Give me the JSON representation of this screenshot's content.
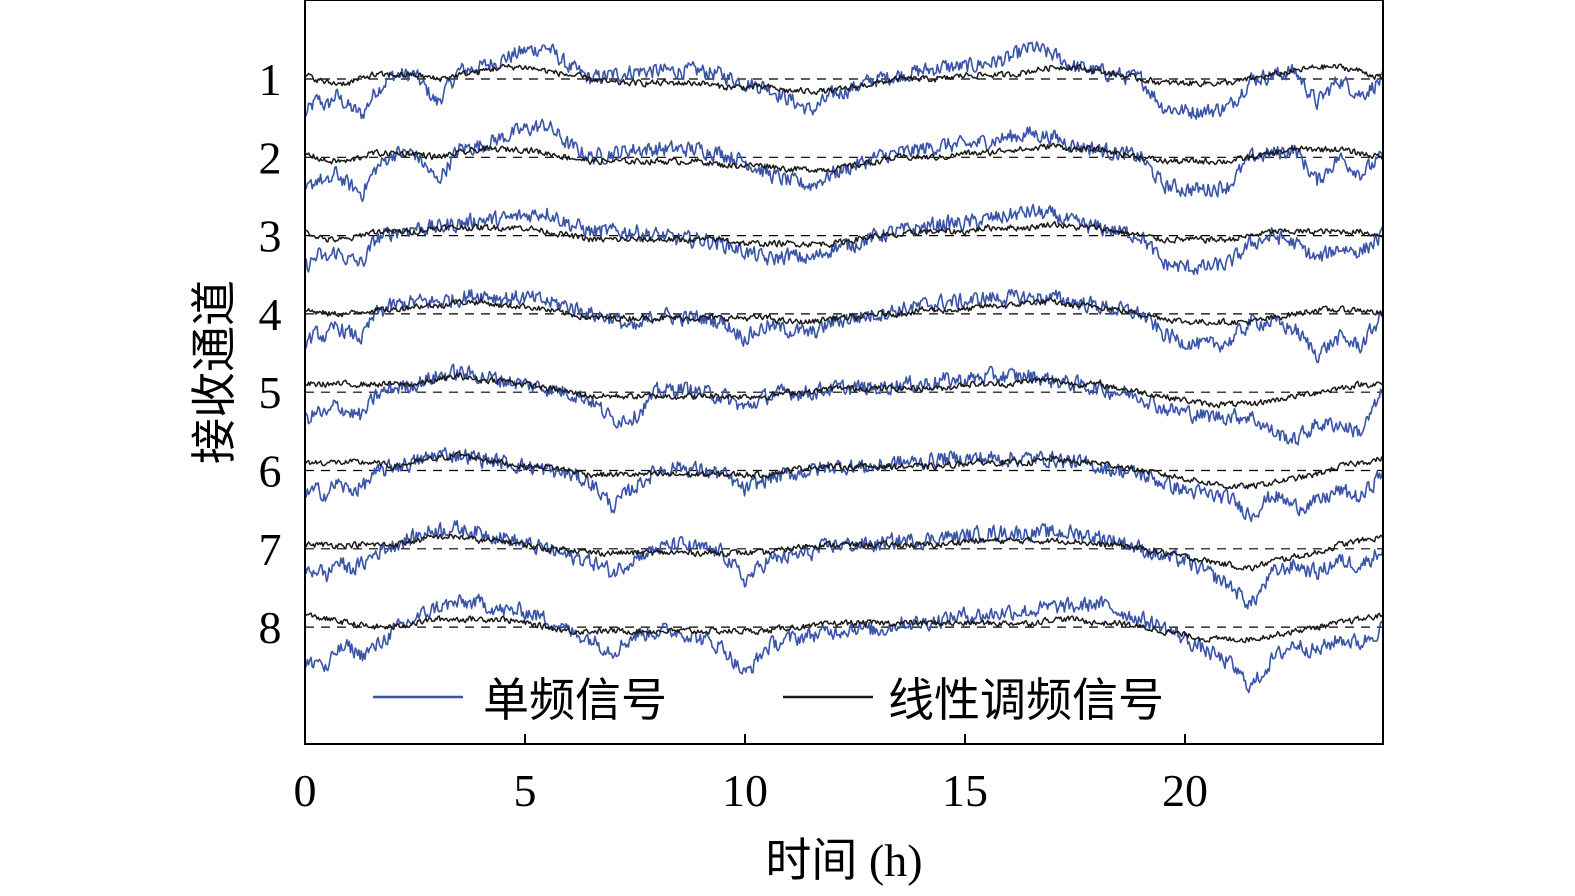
{
  "chart_data": {
    "type": "line",
    "xlabel": "时间 (h)",
    "ylabel": "接收通道",
    "xlim": [
      0,
      24.5
    ],
    "xticks": [
      0,
      5,
      10,
      15,
      20
    ],
    "channels": [
      "1",
      "2",
      "3",
      "4",
      "5",
      "6",
      "7",
      "8"
    ],
    "grid": false,
    "legend_position": "bottom-inside",
    "baseline_style": "dashed",
    "series": [
      {
        "name": "单频信号",
        "color": "#3a54a8",
        "profile_x": [
          0,
          0.3,
          0.5,
          0.7,
          1.0,
          1.3,
          1.6,
          2.0,
          2.5,
          3.0,
          3.5,
          4.0,
          4.5,
          5.0,
          5.5,
          6.0,
          6.5,
          7.0,
          7.5,
          8.0,
          8.5,
          9.0,
          9.5,
          10.0,
          10.5,
          11.0,
          11.5,
          12.0,
          12.5,
          13.0,
          13.5,
          14.0,
          14.5,
          15.0,
          15.5,
          16.0,
          16.5,
          17.0,
          17.5,
          18.0,
          18.5,
          19.0,
          19.5,
          20.0,
          20.5,
          21.0,
          21.5,
          22.0,
          22.5,
          23.0,
          23.5,
          24.0,
          24.5
        ],
        "channel_offsets": [
          [
            -0.45,
            -0.25,
            -0.35,
            -0.2,
            -0.35,
            -0.45,
            -0.15,
            0.05,
            0.05,
            -0.3,
            0.1,
            0.15,
            0.25,
            0.35,
            0.4,
            0.15,
            0.0,
            0.05,
            0.1,
            0.1,
            0.1,
            0.1,
            0.05,
            -0.05,
            -0.1,
            -0.25,
            -0.4,
            -0.2,
            -0.1,
            0.0,
            0.05,
            0.1,
            0.15,
            0.15,
            0.2,
            0.25,
            0.4,
            0.3,
            0.15,
            0.1,
            0.05,
            0.0,
            -0.35,
            -0.4,
            -0.4,
            -0.35,
            0.0,
            0.05,
            0.1,
            -0.3,
            0.0,
            -0.2,
            0.0
          ],
          [
            -0.45,
            -0.25,
            -0.35,
            -0.2,
            -0.35,
            -0.45,
            -0.15,
            0.05,
            0.05,
            -0.3,
            0.1,
            0.15,
            0.25,
            0.35,
            0.4,
            0.15,
            0.0,
            0.05,
            0.1,
            0.1,
            0.1,
            0.1,
            0.05,
            -0.05,
            -0.2,
            -0.3,
            -0.35,
            -0.2,
            -0.1,
            0.0,
            0.05,
            0.1,
            0.15,
            0.15,
            0.2,
            0.25,
            0.3,
            0.25,
            0.15,
            0.1,
            0.05,
            0.0,
            -0.35,
            -0.4,
            -0.4,
            -0.35,
            0.0,
            0.05,
            0.1,
            -0.3,
            0.0,
            -0.2,
            0.0
          ],
          [
            -0.4,
            -0.25,
            -0.3,
            -0.2,
            -0.3,
            -0.35,
            -0.05,
            0.05,
            0.1,
            0.1,
            0.15,
            0.2,
            0.2,
            0.25,
            0.3,
            0.15,
            0.05,
            0.05,
            0.05,
            0.0,
            -0.05,
            -0.05,
            -0.1,
            -0.2,
            -0.3,
            -0.25,
            -0.3,
            -0.15,
            -0.1,
            0.0,
            0.05,
            0.1,
            0.15,
            0.15,
            0.2,
            0.25,
            0.3,
            0.25,
            0.15,
            0.1,
            0.05,
            0.0,
            -0.35,
            -0.4,
            -0.4,
            -0.35,
            -0.1,
            0.0,
            -0.1,
            -0.3,
            -0.15,
            -0.2,
            0.0
          ],
          [
            -0.35,
            -0.25,
            -0.3,
            -0.15,
            -0.25,
            -0.3,
            0.0,
            0.1,
            0.15,
            0.15,
            0.2,
            0.25,
            0.2,
            0.2,
            0.15,
            0.1,
            0.0,
            -0.05,
            -0.2,
            0.0,
            -0.05,
            -0.05,
            -0.1,
            -0.3,
            -0.15,
            -0.2,
            -0.25,
            -0.1,
            -0.05,
            0.0,
            0.05,
            0.1,
            0.15,
            0.15,
            0.2,
            0.2,
            0.2,
            0.2,
            0.15,
            0.1,
            0.05,
            0.0,
            -0.25,
            -0.35,
            -0.4,
            -0.35,
            -0.1,
            -0.1,
            -0.2,
            -0.5,
            -0.3,
            -0.4,
            0.0
          ],
          [
            -0.35,
            -0.25,
            -0.3,
            -0.15,
            -0.25,
            -0.3,
            -0.05,
            0.05,
            0.1,
            0.2,
            0.25,
            0.2,
            0.15,
            0.1,
            0.05,
            0.0,
            -0.1,
            -0.35,
            -0.3,
            0.0,
            0.05,
            0.0,
            -0.05,
            -0.2,
            -0.05,
            0.0,
            0.0,
            0.05,
            0.05,
            0.05,
            0.1,
            0.1,
            0.15,
            0.15,
            0.2,
            0.2,
            0.2,
            0.15,
            0.1,
            0.05,
            0.0,
            -0.05,
            -0.2,
            -0.25,
            -0.3,
            -0.3,
            -0.3,
            -0.5,
            -0.6,
            -0.4,
            -0.4,
            -0.5,
            0.0
          ],
          [
            -0.3,
            -0.25,
            -0.3,
            -0.15,
            -0.25,
            -0.2,
            -0.05,
            0.05,
            0.1,
            0.2,
            0.2,
            0.15,
            0.1,
            0.05,
            0.0,
            -0.05,
            -0.15,
            -0.45,
            -0.2,
            0.0,
            0.05,
            0.0,
            -0.05,
            -0.25,
            -0.1,
            -0.05,
            0.0,
            0.05,
            0.05,
            0.05,
            0.1,
            0.1,
            0.15,
            0.15,
            0.15,
            0.15,
            0.15,
            0.15,
            0.1,
            0.05,
            0.0,
            -0.05,
            -0.15,
            -0.25,
            -0.3,
            -0.35,
            -0.55,
            -0.3,
            -0.45,
            -0.4,
            -0.25,
            -0.35,
            0.0
          ],
          [
            -0.3,
            -0.25,
            -0.35,
            -0.15,
            -0.25,
            -0.2,
            -0.05,
            0.05,
            0.15,
            0.25,
            0.25,
            0.2,
            0.15,
            0.05,
            0.0,
            -0.1,
            -0.15,
            -0.3,
            -0.1,
            0.0,
            0.05,
            0.0,
            -0.05,
            -0.4,
            -0.15,
            -0.1,
            -0.05,
            0.05,
            0.05,
            0.05,
            0.1,
            0.1,
            0.15,
            0.15,
            0.2,
            0.2,
            0.2,
            0.2,
            0.2,
            0.15,
            0.1,
            0.0,
            -0.1,
            -0.15,
            -0.3,
            -0.45,
            -0.7,
            -0.3,
            -0.2,
            -0.3,
            -0.15,
            -0.2,
            0.0
          ],
          [
            -0.5,
            -0.4,
            -0.55,
            -0.3,
            -0.25,
            -0.35,
            -0.25,
            -0.05,
            0.1,
            0.25,
            0.3,
            0.3,
            0.2,
            0.2,
            0.1,
            -0.05,
            -0.15,
            -0.3,
            -0.1,
            -0.05,
            -0.05,
            -0.15,
            -0.25,
            -0.6,
            -0.25,
            -0.15,
            -0.1,
            -0.05,
            0.0,
            -0.05,
            0.05,
            0.05,
            0.1,
            0.15,
            0.15,
            0.2,
            0.2,
            0.25,
            0.25,
            0.3,
            0.2,
            0.1,
            0.0,
            -0.15,
            -0.3,
            -0.45,
            -0.75,
            -0.4,
            -0.2,
            -0.3,
            -0.15,
            -0.2,
            0.0
          ]
        ]
      },
      {
        "name": "线性调频信号",
        "color": "#1a1a1a",
        "profile_x": [
          0,
          0.5,
          1.0,
          1.5,
          2.0,
          2.5,
          3.0,
          3.5,
          4.0,
          4.5,
          5.0,
          5.5,
          6.0,
          6.5,
          7.0,
          7.5,
          8.0,
          8.5,
          9.0,
          9.5,
          10.0,
          10.5,
          11.0,
          11.5,
          12.0,
          12.5,
          13.0,
          13.5,
          14.0,
          14.5,
          15.0,
          15.5,
          16.0,
          16.5,
          17.0,
          17.5,
          18.0,
          18.5,
          19.0,
          19.5,
          20.0,
          20.5,
          21.0,
          21.5,
          22.0,
          22.5,
          23.0,
          23.5,
          24.0,
          24.5
        ],
        "channel_offsets": [
          [
            0.05,
            -0.05,
            -0.05,
            0.05,
            0.05,
            0.05,
            0.0,
            0.05,
            0.1,
            0.15,
            0.15,
            0.1,
            0.05,
            0.0,
            -0.05,
            -0.05,
            -0.05,
            -0.05,
            -0.05,
            -0.1,
            -0.1,
            -0.1,
            -0.15,
            -0.15,
            -0.15,
            -0.1,
            -0.05,
            0.0,
            0.0,
            0.0,
            0.05,
            0.05,
            0.05,
            0.1,
            0.15,
            0.15,
            0.1,
            0.05,
            0.0,
            -0.05,
            -0.05,
            -0.05,
            -0.05,
            0.0,
            0.05,
            0.1,
            0.15,
            0.15,
            0.1,
            0.0
          ],
          [
            0.05,
            -0.05,
            -0.05,
            0.05,
            0.05,
            0.05,
            0.0,
            0.05,
            0.1,
            0.1,
            0.1,
            0.05,
            0.0,
            -0.05,
            -0.05,
            -0.05,
            -0.05,
            -0.05,
            -0.05,
            -0.1,
            -0.1,
            -0.1,
            -0.15,
            -0.15,
            -0.15,
            -0.1,
            -0.05,
            0.0,
            0.0,
            0.0,
            0.05,
            0.05,
            0.1,
            0.1,
            0.15,
            0.1,
            0.1,
            0.05,
            0.0,
            -0.05,
            -0.05,
            -0.05,
            -0.05,
            0.0,
            0.05,
            0.1,
            0.1,
            0.1,
            0.05,
            0.0
          ],
          [
            0.05,
            -0.05,
            -0.05,
            0.05,
            0.05,
            0.05,
            0.1,
            0.1,
            0.1,
            0.1,
            0.1,
            0.05,
            0.0,
            -0.05,
            -0.05,
            -0.05,
            -0.05,
            -0.05,
            -0.05,
            -0.05,
            -0.1,
            -0.1,
            -0.1,
            -0.1,
            -0.1,
            -0.05,
            0.0,
            0.0,
            0.05,
            0.05,
            0.05,
            0.1,
            0.1,
            0.1,
            0.15,
            0.1,
            0.1,
            0.05,
            0.0,
            -0.05,
            -0.05,
            -0.05,
            -0.05,
            0.0,
            0.05,
            0.05,
            0.05,
            0.05,
            0.05,
            0.0
          ],
          [
            0.05,
            0.0,
            0.0,
            0.05,
            0.05,
            0.1,
            0.1,
            0.15,
            0.15,
            0.1,
            0.1,
            0.05,
            0.0,
            -0.05,
            -0.05,
            -0.05,
            -0.05,
            -0.05,
            -0.05,
            -0.05,
            -0.05,
            -0.05,
            -0.1,
            -0.1,
            -0.05,
            -0.05,
            0.0,
            0.0,
            0.05,
            0.05,
            0.05,
            0.1,
            0.1,
            0.15,
            0.15,
            0.1,
            0.1,
            0.05,
            0.0,
            -0.05,
            -0.1,
            -0.1,
            -0.1,
            -0.1,
            -0.05,
            0.0,
            0.05,
            0.05,
            0.05,
            0.0
          ],
          [
            0.1,
            0.1,
            0.1,
            0.1,
            0.1,
            0.1,
            0.15,
            0.2,
            0.15,
            0.15,
            0.1,
            0.05,
            0.0,
            -0.05,
            -0.05,
            -0.05,
            -0.05,
            -0.05,
            -0.05,
            -0.05,
            -0.05,
            -0.05,
            0.0,
            0.0,
            0.05,
            0.05,
            0.05,
            0.05,
            0.05,
            0.05,
            0.1,
            0.1,
            0.1,
            0.15,
            0.15,
            0.1,
            0.1,
            0.05,
            0.0,
            -0.05,
            -0.1,
            -0.15,
            -0.15,
            -0.15,
            -0.1,
            -0.05,
            0.0,
            0.05,
            0.1,
            0.1
          ],
          [
            0.1,
            0.1,
            0.1,
            0.1,
            0.05,
            0.1,
            0.15,
            0.2,
            0.15,
            0.1,
            0.05,
            0.05,
            0.0,
            -0.05,
            -0.05,
            -0.05,
            -0.05,
            -0.05,
            -0.05,
            -0.05,
            -0.05,
            -0.05,
            0.0,
            0.05,
            0.05,
            0.05,
            0.05,
            0.05,
            0.05,
            0.05,
            0.1,
            0.1,
            0.1,
            0.1,
            0.15,
            0.1,
            0.1,
            0.05,
            0.0,
            -0.05,
            -0.1,
            -0.15,
            -0.2,
            -0.2,
            -0.15,
            -0.1,
            -0.05,
            0.05,
            0.1,
            0.15
          ],
          [
            0.05,
            0.05,
            0.05,
            0.05,
            0.05,
            0.1,
            0.15,
            0.15,
            0.1,
            0.1,
            0.05,
            0.0,
            0.0,
            -0.05,
            -0.05,
            -0.05,
            -0.05,
            -0.05,
            -0.05,
            -0.05,
            -0.05,
            -0.05,
            0.0,
            0.05,
            0.05,
            0.05,
            0.05,
            0.05,
            0.05,
            0.05,
            0.1,
            0.1,
            0.1,
            0.1,
            0.1,
            0.1,
            0.05,
            0.05,
            0.0,
            -0.05,
            -0.1,
            -0.15,
            -0.2,
            -0.25,
            -0.15,
            -0.1,
            -0.05,
            0.05,
            0.1,
            0.15
          ],
          [
            0.15,
            0.1,
            0.05,
            0.0,
            0.0,
            0.05,
            0.1,
            0.1,
            0.1,
            0.1,
            0.05,
            0.0,
            -0.05,
            -0.05,
            -0.05,
            -0.05,
            -0.05,
            -0.05,
            -0.05,
            -0.05,
            -0.05,
            -0.05,
            0.0,
            0.0,
            0.05,
            0.05,
            0.05,
            0.05,
            0.05,
            0.05,
            0.05,
            0.05,
            0.05,
            0.05,
            0.1,
            0.1,
            0.05,
            0.05,
            0.0,
            -0.05,
            -0.1,
            -0.15,
            -0.15,
            -0.15,
            -0.1,
            -0.05,
            0.0,
            0.05,
            0.1,
            0.15
          ]
        ]
      }
    ]
  }
}
